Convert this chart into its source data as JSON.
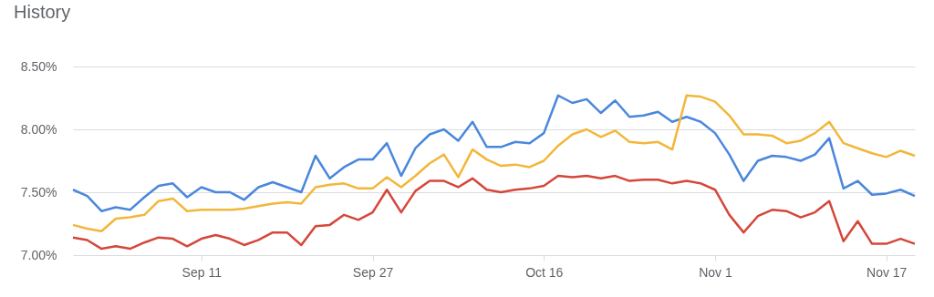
{
  "chart_data": {
    "type": "line",
    "title": "History",
    "categories": [
      null,
      null,
      null,
      null,
      null,
      null,
      null,
      null,
      null,
      "Sep 11",
      null,
      null,
      null,
      null,
      null,
      null,
      null,
      null,
      null,
      null,
      null,
      "Sep 27",
      null,
      null,
      null,
      null,
      null,
      null,
      null,
      null,
      null,
      null,
      null,
      "Oct 16",
      null,
      null,
      null,
      null,
      null,
      null,
      null,
      null,
      null,
      null,
      null,
      "Nov 1",
      null,
      null,
      null,
      null,
      null,
      null,
      null,
      null,
      null,
      null,
      null,
      "Nov 17",
      null,
      null
    ],
    "series": [
      {
        "color": "#4a87dc",
        "values": [
          7.52,
          7.47,
          7.35,
          7.38,
          7.36,
          7.46,
          7.55,
          7.57,
          7.46,
          7.54,
          7.5,
          7.5,
          7.44,
          7.54,
          7.58,
          7.54,
          7.5,
          7.79,
          7.61,
          7.7,
          7.76,
          7.76,
          7.89,
          7.63,
          7.85,
          7.96,
          8.0,
          7.91,
          8.06,
          7.86,
          7.86,
          7.9,
          7.89,
          7.97,
          8.27,
          8.21,
          8.24,
          8.13,
          8.23,
          8.1,
          8.11,
          8.14,
          8.06,
          8.1,
          8.06,
          7.97,
          7.8,
          7.59,
          7.75,
          7.79,
          7.78,
          7.75,
          7.8,
          7.93,
          7.53,
          7.59,
          7.48,
          7.49,
          7.52,
          7.47
        ]
      },
      {
        "color": "#f2b73a",
        "values": [
          7.24,
          7.21,
          7.19,
          7.29,
          7.3,
          7.32,
          7.43,
          7.45,
          7.35,
          7.36,
          7.36,
          7.36,
          7.37,
          7.39,
          7.41,
          7.42,
          7.41,
          7.54,
          7.56,
          7.57,
          7.53,
          7.53,
          7.62,
          7.54,
          7.63,
          7.73,
          7.8,
          7.62,
          7.84,
          7.76,
          7.71,
          7.72,
          7.7,
          7.75,
          7.87,
          7.96,
          8.0,
          7.94,
          7.99,
          7.9,
          7.89,
          7.9,
          7.84,
          8.27,
          8.26,
          8.22,
          8.11,
          7.96,
          7.96,
          7.95,
          7.89,
          7.91,
          7.97,
          8.06,
          7.89,
          7.85,
          7.81,
          7.78,
          7.83,
          7.79
        ]
      },
      {
        "color": "#d5473a",
        "values": [
          7.14,
          7.12,
          7.05,
          7.07,
          7.05,
          7.1,
          7.14,
          7.13,
          7.07,
          7.13,
          7.16,
          7.13,
          7.08,
          7.12,
          7.18,
          7.18,
          7.08,
          7.23,
          7.24,
          7.32,
          7.28,
          7.34,
          7.52,
          7.34,
          7.51,
          7.59,
          7.59,
          7.54,
          7.61,
          7.52,
          7.5,
          7.52,
          7.53,
          7.55,
          7.63,
          7.62,
          7.63,
          7.61,
          7.63,
          7.59,
          7.6,
          7.6,
          7.57,
          7.59,
          7.57,
          7.52,
          7.32,
          7.18,
          7.31,
          7.36,
          7.35,
          7.3,
          7.34,
          7.43,
          7.11,
          7.27,
          7.09,
          7.09,
          7.13,
          7.09
        ]
      }
    ],
    "ylim": [
      7.0,
      8.5
    ],
    "yticks": [
      {
        "value": 7.0,
        "label": "7.00%"
      },
      {
        "value": 7.5,
        "label": "7.50%"
      },
      {
        "value": 8.0,
        "label": "8.00%"
      },
      {
        "value": 8.5,
        "label": "8.50%"
      }
    ],
    "grid": "y",
    "legend": false,
    "marker": "none",
    "line_style": "solid"
  }
}
